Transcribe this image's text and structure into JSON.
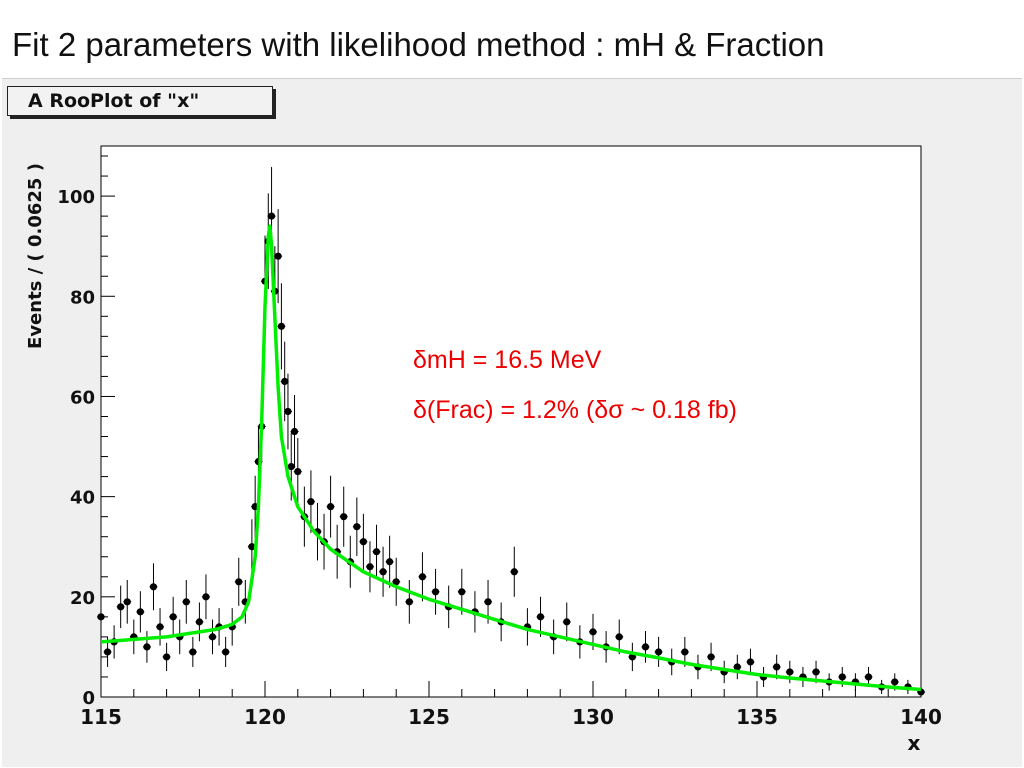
{
  "slide_title": "Fit 2 parameters with likelihood method : mH & Fraction",
  "plot_title": "A RooPlot of \"x\"",
  "annotations": [
    "δmH = 16.5 MeV",
    "δ(Frac) = 1.2% (δσ ~ 0.18 fb)"
  ],
  "colors": {
    "points": "#000000",
    "fit_curve": "#00ee00",
    "annotation_text": "#ee0000",
    "frame_background": "#ffffff",
    "canvas_background": "#efefef"
  },
  "chart_data": {
    "type": "scatter",
    "xlabel": "x",
    "ylabel": "Events / ( 0.0625 )",
    "xlim": [
      115,
      140
    ],
    "ylim": [
      0,
      110
    ],
    "x_ticks": [
      115,
      120,
      125,
      130,
      135,
      140
    ],
    "y_ticks": [
      0,
      20,
      40,
      60,
      80,
      100
    ],
    "grid": false,
    "legend": "none",
    "series": [
      {
        "kind": "data points with error bars",
        "points": [
          [
            115.0,
            16
          ],
          [
            115.2,
            9
          ],
          [
            115.4,
            11
          ],
          [
            115.6,
            18
          ],
          [
            115.8,
            19
          ],
          [
            116.0,
            12
          ],
          [
            116.2,
            17
          ],
          [
            116.4,
            10
          ],
          [
            116.6,
            22
          ],
          [
            116.8,
            14
          ],
          [
            117.0,
            8
          ],
          [
            117.2,
            16
          ],
          [
            117.4,
            12
          ],
          [
            117.6,
            19
          ],
          [
            117.8,
            9
          ],
          [
            118.0,
            15
          ],
          [
            118.2,
            20
          ],
          [
            118.4,
            12
          ],
          [
            118.6,
            14
          ],
          [
            118.8,
            9
          ],
          [
            119.0,
            14
          ],
          [
            119.2,
            23
          ],
          [
            119.4,
            19
          ],
          [
            119.6,
            30
          ],
          [
            119.7,
            38
          ],
          [
            119.8,
            47
          ],
          [
            119.9,
            54
          ],
          [
            120.0,
            83
          ],
          [
            120.1,
            91
          ],
          [
            120.2,
            96
          ],
          [
            120.3,
            81
          ],
          [
            120.4,
            88
          ],
          [
            120.5,
            74
          ],
          [
            120.6,
            63
          ],
          [
            120.7,
            57
          ],
          [
            120.8,
            46
          ],
          [
            120.9,
            53
          ],
          [
            121.0,
            45
          ],
          [
            121.2,
            36
          ],
          [
            121.4,
            39
          ],
          [
            121.6,
            33
          ],
          [
            121.8,
            31
          ],
          [
            122.0,
            38
          ],
          [
            122.2,
            29
          ],
          [
            122.4,
            36
          ],
          [
            122.6,
            27
          ],
          [
            122.8,
            34
          ],
          [
            123.0,
            31
          ],
          [
            123.2,
            26
          ],
          [
            123.4,
            29
          ],
          [
            123.6,
            25
          ],
          [
            123.8,
            27
          ],
          [
            124.0,
            23
          ],
          [
            124.4,
            19
          ],
          [
            124.8,
            24
          ],
          [
            125.2,
            21
          ],
          [
            125.6,
            18
          ],
          [
            126.0,
            21
          ],
          [
            126.4,
            17
          ],
          [
            126.8,
            19
          ],
          [
            127.2,
            15
          ],
          [
            127.6,
            25
          ],
          [
            128.0,
            14
          ],
          [
            128.4,
            16
          ],
          [
            128.8,
            12
          ],
          [
            129.2,
            15
          ],
          [
            129.6,
            11
          ],
          [
            130.0,
            13
          ],
          [
            130.4,
            10
          ],
          [
            130.8,
            12
          ],
          [
            131.2,
            8
          ],
          [
            131.6,
            10
          ],
          [
            132.0,
            9
          ],
          [
            132.4,
            7
          ],
          [
            132.8,
            9
          ],
          [
            133.2,
            6
          ],
          [
            133.6,
            8
          ],
          [
            134.0,
            5
          ],
          [
            134.4,
            6
          ],
          [
            134.8,
            7
          ],
          [
            135.2,
            4
          ],
          [
            135.6,
            6
          ],
          [
            136.0,
            5
          ],
          [
            136.4,
            4
          ],
          [
            136.8,
            5
          ],
          [
            137.2,
            3
          ],
          [
            137.6,
            4
          ],
          [
            138.0,
            3
          ],
          [
            138.4,
            4
          ],
          [
            138.8,
            2
          ],
          [
            139.2,
            3
          ],
          [
            139.6,
            2
          ],
          [
            140.0,
            1
          ]
        ]
      },
      {
        "kind": "fit curve",
        "points": [
          [
            115.0,
            11
          ],
          [
            116.0,
            11.5
          ],
          [
            117.0,
            12
          ],
          [
            118.0,
            13
          ],
          [
            118.5,
            13.5
          ],
          [
            119.0,
            14.5
          ],
          [
            119.3,
            16
          ],
          [
            119.5,
            19
          ],
          [
            119.7,
            28
          ],
          [
            119.8,
            38
          ],
          [
            119.9,
            55
          ],
          [
            120.0,
            78
          ],
          [
            120.1,
            92
          ],
          [
            120.15,
            94
          ],
          [
            120.2,
            90
          ],
          [
            120.3,
            76
          ],
          [
            120.4,
            62
          ],
          [
            120.5,
            52
          ],
          [
            120.7,
            44
          ],
          [
            121.0,
            38
          ],
          [
            121.5,
            33
          ],
          [
            122.0,
            29.5
          ],
          [
            123.0,
            25
          ],
          [
            124.0,
            22
          ],
          [
            125.0,
            19.5
          ],
          [
            126.0,
            17.5
          ],
          [
            127.0,
            15.5
          ],
          [
            128.0,
            13.5
          ],
          [
            129.0,
            12
          ],
          [
            130.0,
            10.5
          ],
          [
            131.0,
            9
          ],
          [
            132.0,
            7.8
          ],
          [
            133.0,
            6.5
          ],
          [
            134.0,
            5.5
          ],
          [
            135.0,
            4.5
          ],
          [
            136.0,
            3.8
          ],
          [
            137.0,
            3.2
          ],
          [
            138.0,
            2.6
          ],
          [
            139.0,
            2
          ],
          [
            140.0,
            1.5
          ]
        ]
      }
    ]
  }
}
